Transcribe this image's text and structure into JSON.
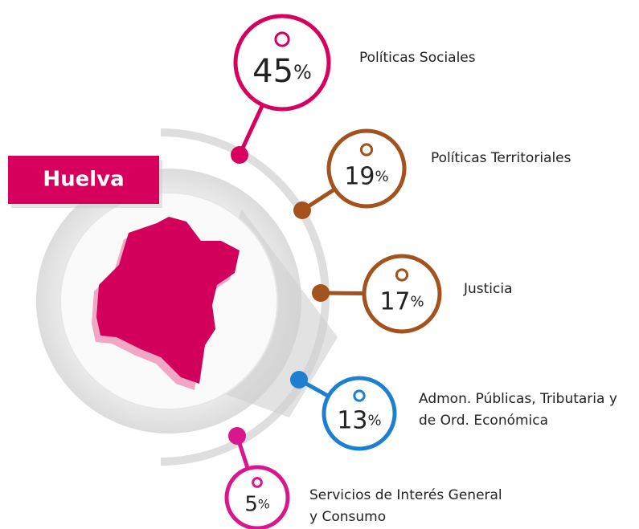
{
  "title": "Huelva",
  "unit": "%",
  "items": [
    {
      "label": [
        "Políticas Sociales"
      ],
      "value": 45,
      "color": "#d7005f"
    },
    {
      "label": [
        "Políticas Territoriales"
      ],
      "value": 19,
      "color": "#a3521e"
    },
    {
      "label": [
        "Justicia"
      ],
      "value": 17,
      "color": "#a3521e"
    },
    {
      "label": [
        "Admon. Públicas, Tributaria y",
        "de Ord. Económica"
      ],
      "value": 13,
      "color": "#1d7fd1"
    },
    {
      "label": [
        "Servicios de Interés General",
        "y Consumo"
      ],
      "value": 5,
      "color": "#d8168e"
    }
  ]
}
